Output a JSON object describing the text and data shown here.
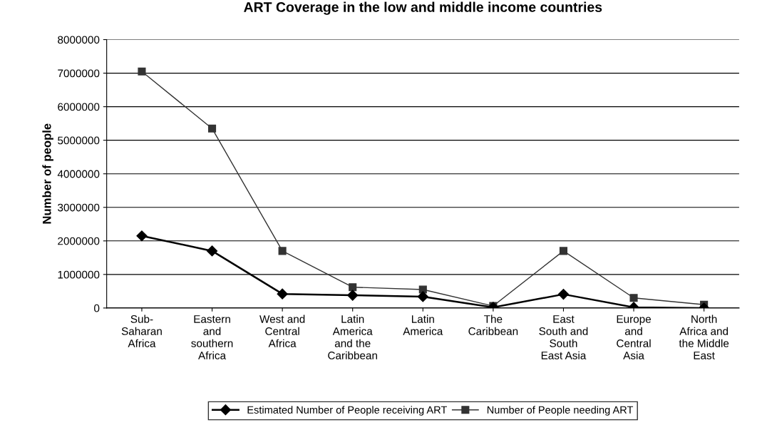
{
  "chart_data": {
    "type": "line",
    "title": "ART Coverage in the low and middle income countries",
    "ylabel": "Number of people",
    "categories": [
      "Sub-\nSaharan\nAfrica",
      "Eastern\nand\nsouthern\nAfrica",
      "West and\nCentral\nAfrica",
      "Latin\nAmerica\nand the\nCaribbean",
      "Latin\nAmerica",
      "The\nCaribbean",
      "East\nSouth and\nSouth\nEast Asia",
      "Europe\nand\nCentral\nAsia",
      "North\nAfrica and\nthe Middle\nEast"
    ],
    "series": [
      {
        "name": "Estimated Number of People receiving ART",
        "color": "#000000",
        "marker": "diamond",
        "values": [
          2150000,
          1700000,
          420000,
          380000,
          340000,
          20000,
          410000,
          20000,
          0
        ]
      },
      {
        "name": "Number of People needing ART",
        "color": "#333333",
        "marker": "square",
        "values": [
          7050000,
          5350000,
          1700000,
          620000,
          550000,
          60000,
          1700000,
          300000,
          100000
        ]
      }
    ],
    "ylim": [
      0,
      8000000
    ],
    "yticks": [
      0,
      1000000,
      2000000,
      3000000,
      4000000,
      5000000,
      6000000,
      7000000,
      8000000
    ],
    "grid": "y",
    "legend": "bottom"
  }
}
